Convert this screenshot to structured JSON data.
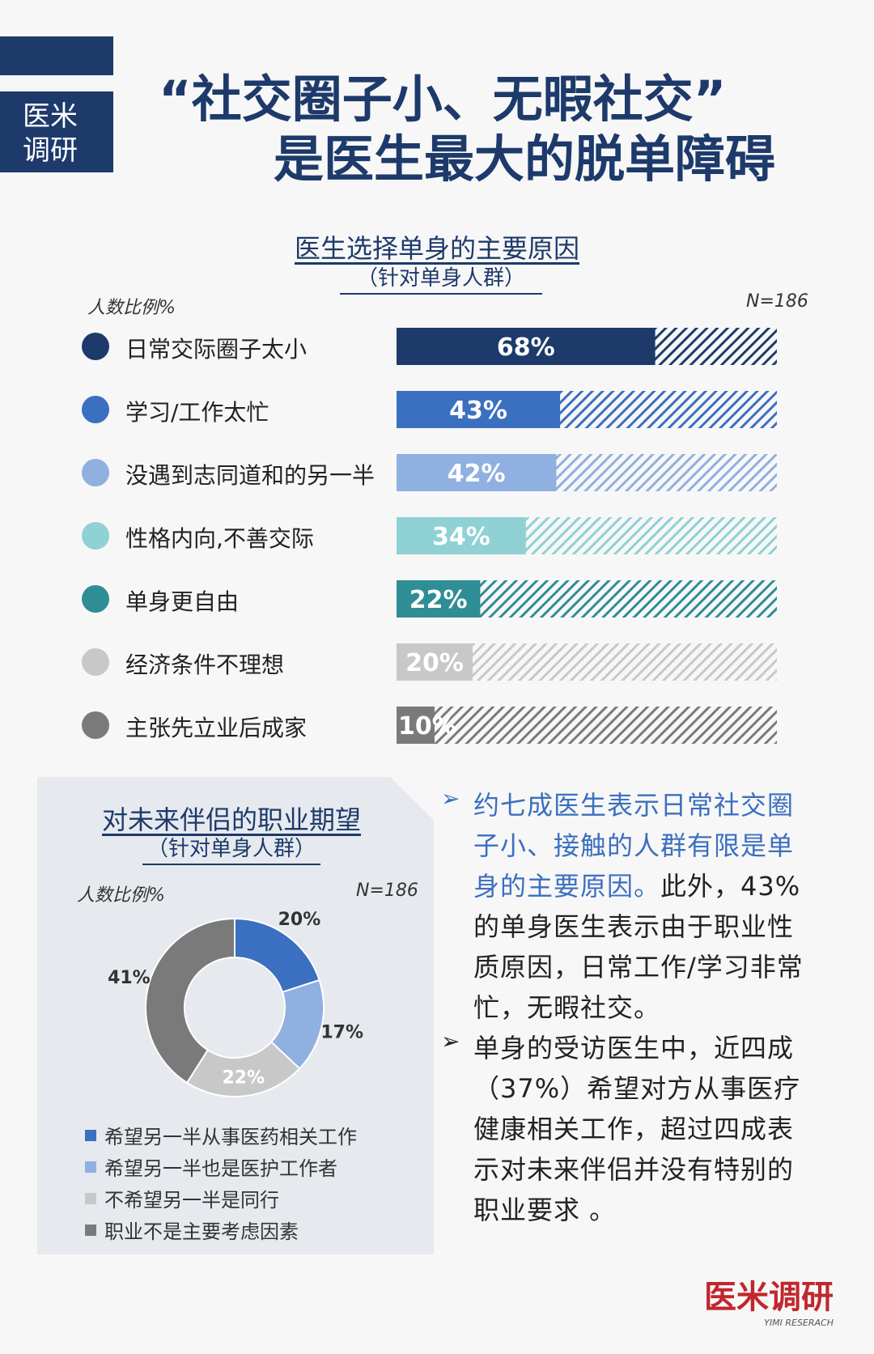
{
  "brand": {
    "line1": "医米",
    "line2": "调研"
  },
  "title": {
    "line1": "“社交圈子小、无暇社交”",
    "line2": "是医生最大的脱单障碍"
  },
  "bar_chart": {
    "title": "医生选择单身的主要原因",
    "subtitle": "（针对单身人群）",
    "axis_label": "人数比例%",
    "n": "N=186"
  },
  "donut_chart": {
    "title": "对未来伴侣的职业期望",
    "subtitle": "（针对单身人群）",
    "axis_label": "人数比例%",
    "n": "N=186"
  },
  "chart_data": [
    {
      "type": "bar",
      "orientation": "horizontal",
      "categories": [
        "日常交际圈子太小",
        "学习/工作太忙",
        "没遇到志同道和的另一半",
        "性格内向,不善交际",
        "单身更自由",
        "经济条件不理想",
        "主张先立业后成家"
      ],
      "values": [
        68,
        43,
        42,
        34,
        22,
        20,
        10
      ],
      "labels": [
        "68%",
        "43%",
        "42%",
        "34%",
        "22%",
        "20%",
        "10%"
      ],
      "colors": [
        "#1d3a6b",
        "#3b6fbf",
        "#8fb0e0",
        "#8fd1d4",
        "#2f8d95",
        "#c8c8c8",
        "#7a7a7a"
      ],
      "xlim": [
        0,
        100
      ],
      "background": "hatched"
    },
    {
      "type": "pie",
      "style": "donut",
      "categories": [
        "希望另一半从事医药相关工作",
        "希望另一半也是医护工作者",
        "不希望另一半是同行",
        "职业不是主要考虑因素"
      ],
      "values": [
        20,
        17,
        22,
        41
      ],
      "labels": [
        "20%",
        "17%",
        "22%",
        "41%"
      ],
      "colors": [
        "#3b6fbf",
        "#8fb0e0",
        "#c8c8c8",
        "#7a7a7a"
      ],
      "legend": "bottom"
    }
  ],
  "bullets": [
    {
      "highlight": "约七成医生表示日常社交圈子小、接触的人群有限是单身的主要原因。",
      "rest": "此外，43%的单身医生表示由于职业性质原因，日常工作/学习非常忙，无暇社交。"
    },
    {
      "highlight": "",
      "rest": "单身的受访医生中，近四成（37%）希望对方从事医疗健康相关工作，超过四成表示对未来伴侣并没有特别的职业要求 。"
    }
  ],
  "logo": {
    "text": "医米调研",
    "sub": "YIMI RESERACH"
  },
  "colors": {
    "navy": "#1d3a6b",
    "highlight_blue": "#3b6fbf",
    "logo_red": "#c0272d"
  }
}
